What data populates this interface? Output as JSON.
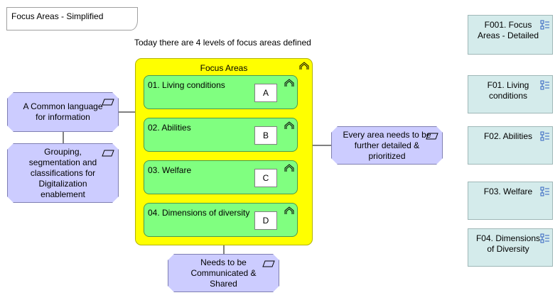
{
  "diagram": {
    "title": "Focus Areas - Simplified",
    "subtitle": "Today there are 4 levels of focus areas defined",
    "container_label": "Focus Areas",
    "items": [
      {
        "label": "01. Living conditions",
        "code": "A"
      },
      {
        "label": "02. Abilities",
        "code": "B"
      },
      {
        "label": "03. Welfare",
        "code": "C"
      },
      {
        "label": "04. Dimensions of diversity",
        "code": "D"
      }
    ],
    "requirements": {
      "common_language": "A Common language for information",
      "grouping": "Grouping, segmentation and classifications for Digitalization enablement",
      "detailed": "Every area needs to be further detailed & prioritized",
      "communicated": "Needs to be Communicated & Shared"
    },
    "references": [
      {
        "label": "F001. Focus Areas - Detailed"
      },
      {
        "label": "F01. Living conditions"
      },
      {
        "label": "F02. Abilities"
      },
      {
        "label": "F03. Welfare"
      },
      {
        "label": "F04. Dimensions of Diversity"
      }
    ],
    "colors": {
      "container": "#ffff00",
      "item": "#80ff80",
      "requirement": "#ccccff",
      "reference": "#d4ebeb"
    }
  }
}
